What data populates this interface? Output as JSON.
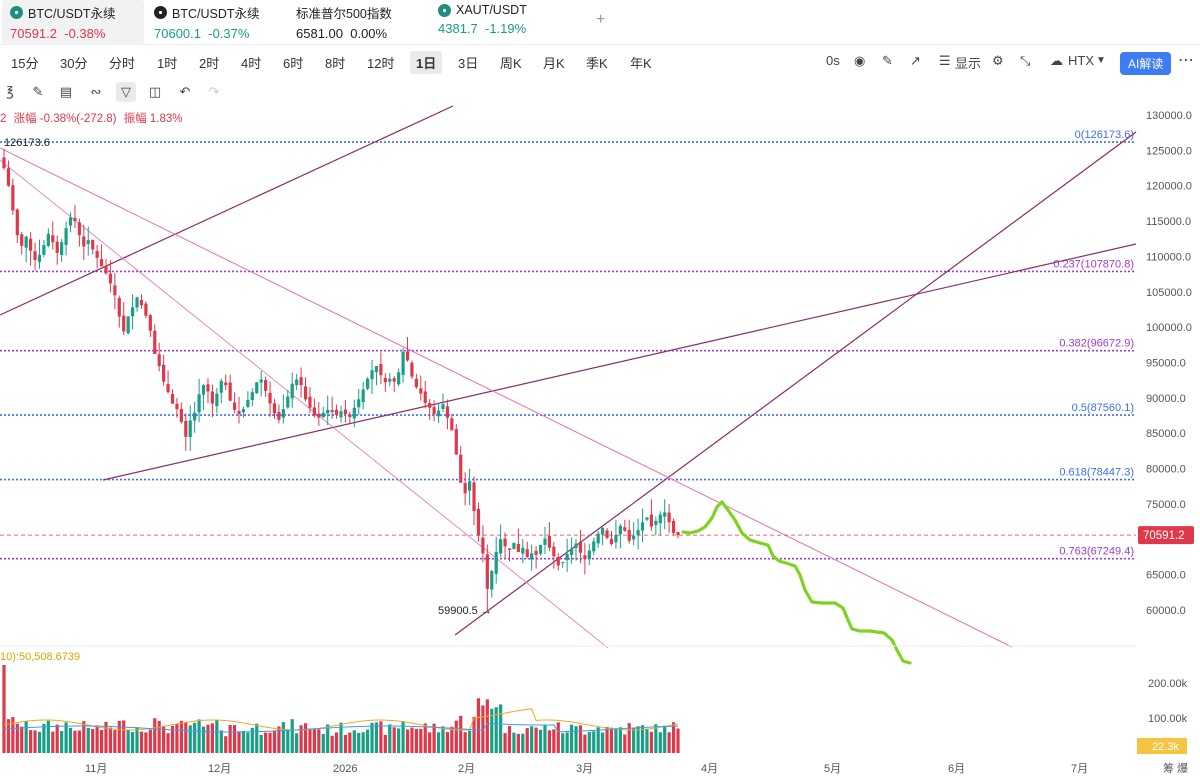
{
  "tickers": [
    {
      "name": "BTC/USDT永续",
      "price": "70591.2",
      "change": "-0.38%",
      "dir": "down",
      "icon": "teal-coin-icon",
      "active": true
    },
    {
      "name": "BTC/USDT永续",
      "price": "70600.1",
      "change": "-0.37%",
      "dir": "down",
      "icon": "dark-coin-icon",
      "active": false
    },
    {
      "name": "标准普尔500指数",
      "price": "6581.00",
      "change": "0.00%",
      "dir": "flat",
      "icon": "",
      "active": false
    },
    {
      "name": "XAUT/USDT",
      "price": "4381.7",
      "change": "-1.19%",
      "dir": "down",
      "icon": "teal-coin-icon",
      "active": false
    }
  ],
  "add_tab": "+",
  "timeframes": [
    "15分",
    "30分",
    "分时",
    "1时",
    "2时",
    "4时",
    "6时",
    "8时",
    "12时",
    "1日",
    "3日",
    "周K",
    "月K",
    "季K",
    "年K"
  ],
  "active_timeframe": "1日",
  "right_controls": {
    "countdown": "0s",
    "display": "显示",
    "exchange": "HTX",
    "ai": "AI解读"
  },
  "info_line": {
    "index": "2",
    "change": "涨幅 -0.38%(-272.8)",
    "amplitude": "振幅 1.83%"
  },
  "volume_info": "10):50,508.6739",
  "colors": {
    "up": "#16a085",
    "down": "#e0384a",
    "fib": "#a13bd6",
    "fib_blue": "#3d6ff2",
    "trend": "#8a2a6b",
    "pink": "#e76fb3",
    "projection": "#7ed321",
    "accent": "#3d7cf2"
  },
  "chart_data": {
    "type": "candlestick",
    "y_axis_ticks": [
      "130000.0",
      "125000.0",
      "120000.0",
      "115000.0",
      "110000.0",
      "105000.0",
      "100000.0",
      "95000.0",
      "90000.0",
      "85000.0",
      "80000.0",
      "75000.0",
      "70000.0",
      "65000.0",
      "60000.0"
    ],
    "ylim": [
      55000,
      131000
    ],
    "x_axis_ticks": [
      "11月",
      "12月",
      "2026",
      "2月",
      "3月",
      "4月",
      "5月",
      "6月",
      "7月"
    ],
    "current_price": "70591.2",
    "current_price_value": 70591.2,
    "high_label": "126173.6",
    "low_label": "59900.5",
    "fib_levels": [
      {
        "label": "0(126173.6)",
        "value": 126173.6,
        "color": "#3d6ff2"
      },
      {
        "label": "0.237(107870.8)",
        "value": 107870.8,
        "color": "#a13bd6"
      },
      {
        "label": "0.382(96672.9)",
        "value": 96672.9,
        "color": "#a13bd6"
      },
      {
        "label": "0.5(87560.1)",
        "value": 87560.1,
        "color": "#3d6ff2"
      },
      {
        "label": "0.618(78447.3)",
        "value": 78447.3,
        "color": "#3d6ff2"
      },
      {
        "label": "0.763(67249.4)",
        "value": 67249.4,
        "color": "#a13bd6"
      }
    ],
    "closes_daily": [
      122500,
      120000,
      116500,
      113000,
      111500,
      112800,
      110800,
      109500,
      110200,
      111600,
      113200,
      112000,
      110500,
      112000,
      114000,
      115500,
      115000,
      113000,
      111400,
      112300,
      111000,
      109800,
      108600,
      107600,
      106200,
      104500,
      101500,
      99400,
      101500,
      102800,
      104200,
      103100,
      101600,
      99500,
      96200,
      94500,
      92300,
      90800,
      89200,
      88400,
      86600,
      84500,
      86800,
      87900,
      90500,
      91800,
      90900,
      89200,
      90600,
      92400,
      91800,
      89600,
      88300,
      87700,
      88400,
      89700,
      90800,
      92200,
      92600,
      91000,
      89200,
      87800,
      86900,
      88400,
      90200,
      92000,
      92600,
      91800,
      89800,
      88600,
      87500,
      87200,
      87900,
      88300,
      88000,
      87600,
      88100,
      87700,
      87300,
      88600,
      89800,
      91200,
      92700,
      93900,
      94500,
      93200,
      92200,
      92700,
      92300,
      93600,
      96500,
      95300,
      93000,
      91500,
      90600,
      89300,
      88600,
      87700,
      88200,
      89100,
      87200,
      85400,
      82000,
      78000,
      76500,
      78200,
      74000,
      70500,
      68000,
      63000,
      65500,
      68200,
      70000,
      69000,
      68500,
      69500,
      68200,
      68800,
      67500,
      68000,
      67800,
      69200,
      70100,
      68800,
      67600,
      66300,
      66800,
      67900,
      68700,
      69400,
      68100,
      67200,
      68400,
      69700,
      70800,
      71600,
      70200,
      69300,
      70600,
      71900,
      71200,
      69800,
      70500,
      71300,
      72400,
      73100,
      71800,
      72600,
      73500,
      73800,
      72400,
      70900,
      70600
    ]
  },
  "projection": {
    "label": "green projection path"
  }
}
